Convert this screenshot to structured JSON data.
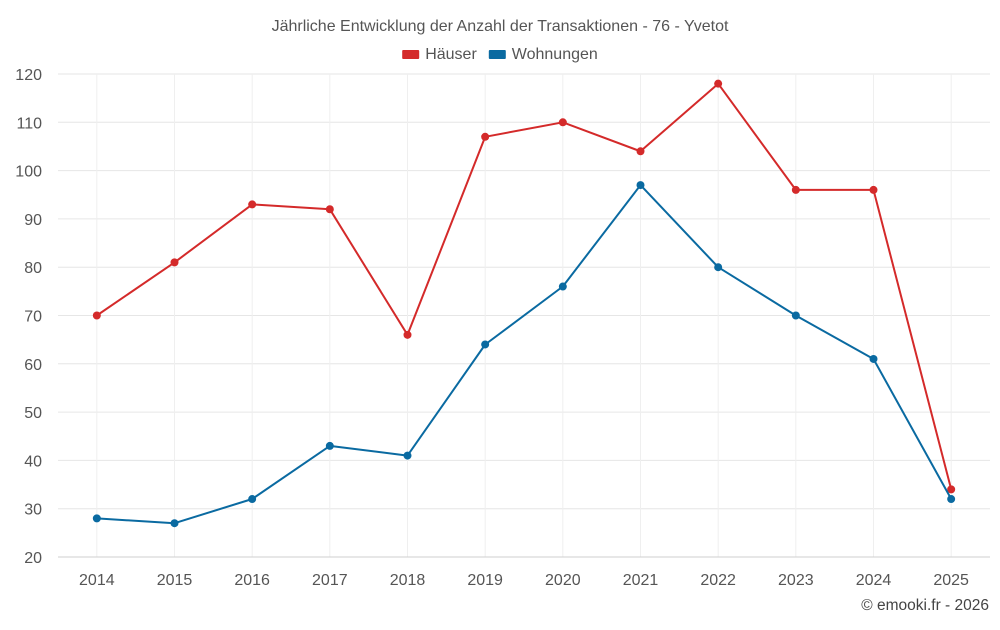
{
  "chart_data": {
    "type": "line",
    "title": "Jährliche Entwicklung der Anzahl der Transaktionen - 76 - Yvetot",
    "xlabel": "",
    "ylabel": "",
    "categories": [
      "2014",
      "2015",
      "2016",
      "2017",
      "2018",
      "2019",
      "2020",
      "2021",
      "2022",
      "2023",
      "2024",
      "2025"
    ],
    "ylim": [
      20,
      120
    ],
    "yticks": [
      20,
      30,
      40,
      50,
      60,
      70,
      80,
      90,
      100,
      110,
      120
    ],
    "grid": true,
    "legend_position": "top-center",
    "series": [
      {
        "name": "Häuser",
        "color": "#d42a2a",
        "values": [
          70,
          81,
          93,
          92,
          66,
          107,
          110,
          104,
          118,
          96,
          96,
          34
        ]
      },
      {
        "name": "Wohnungen",
        "color": "#0a6aa1",
        "values": [
          28,
          27,
          32,
          43,
          41,
          64,
          76,
          97,
          80,
          70,
          61,
          32
        ]
      }
    ]
  },
  "footer": {
    "copyright": "© emooki.fr - 2026"
  }
}
